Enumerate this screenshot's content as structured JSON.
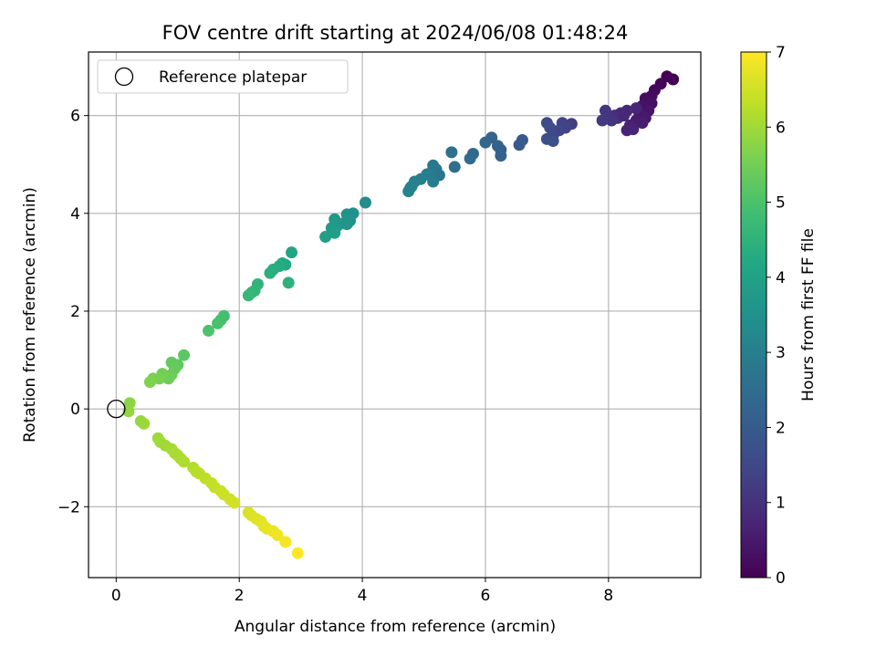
{
  "chart_data": {
    "type": "scatter",
    "title": "FOV centre drift starting at 2024/06/08 01:48:24",
    "xlabel": "Angular distance from reference (arcmin)",
    "ylabel": "Rotation from reference (arcmin)",
    "xlim": [
      -0.45,
      9.5
    ],
    "ylim": [
      -3.45,
      7.3
    ],
    "xticks": [
      0,
      2,
      4,
      6,
      8
    ],
    "yticks": [
      -2,
      0,
      2,
      4,
      6
    ],
    "ytick_labels": [
      "−2",
      "0",
      "2",
      "4",
      "6"
    ],
    "grid": true,
    "legend": {
      "placement": "top-left",
      "entries": [
        "Reference platepar"
      ]
    },
    "reference_point": {
      "x": 0,
      "y": 0,
      "label": "Reference platepar"
    },
    "colorbar": {
      "label": "Hours from first FF file",
      "colormap": "viridis",
      "range": [
        0,
        7
      ],
      "ticks": [
        0,
        1,
        2,
        3,
        4,
        5,
        6,
        7
      ]
    },
    "series": [
      {
        "points": [
          {
            "x": 8.95,
            "y": 6.8,
            "c": 0.02
          },
          {
            "x": 9.05,
            "y": 6.74,
            "c": 0.05
          },
          {
            "x": 8.85,
            "y": 6.65,
            "c": 0.1
          },
          {
            "x": 8.75,
            "y": 6.52,
            "c": 0.15
          },
          {
            "x": 8.7,
            "y": 6.4,
            "c": 0.2
          },
          {
            "x": 8.6,
            "y": 6.35,
            "c": 0.25
          },
          {
            "x": 8.7,
            "y": 6.25,
            "c": 0.3
          },
          {
            "x": 8.55,
            "y": 6.2,
            "c": 0.35
          },
          {
            "x": 8.65,
            "y": 6.1,
            "c": 0.4
          },
          {
            "x": 8.5,
            "y": 6.05,
            "c": 0.45
          },
          {
            "x": 8.6,
            "y": 5.95,
            "c": 0.5
          },
          {
            "x": 8.45,
            "y": 5.9,
            "c": 0.55
          },
          {
            "x": 8.55,
            "y": 5.85,
            "c": 0.6
          },
          {
            "x": 8.35,
            "y": 5.8,
            "c": 0.65
          },
          {
            "x": 8.4,
            "y": 5.72,
            "c": 0.7
          },
          {
            "x": 8.3,
            "y": 5.7,
            "c": 0.72
          },
          {
            "x": 8.45,
            "y": 6.15,
            "c": 0.75
          },
          {
            "x": 8.3,
            "y": 6.1,
            "c": 0.8
          },
          {
            "x": 8.2,
            "y": 6.05,
            "c": 0.85
          },
          {
            "x": 8.1,
            "y": 6.0,
            "c": 0.9
          },
          {
            "x": 8.15,
            "y": 5.95,
            "c": 0.95
          },
          {
            "x": 8.0,
            "y": 6.0,
            "c": 1.0
          },
          {
            "x": 8.05,
            "y": 5.9,
            "c": 1.05
          },
          {
            "x": 7.95,
            "y": 6.1,
            "c": 1.1
          },
          {
            "x": 7.9,
            "y": 5.9,
            "c": 1.15
          },
          {
            "x": 8.25,
            "y": 6.0,
            "c": 0.78
          },
          {
            "x": 7.4,
            "y": 5.83,
            "c": 1.3
          },
          {
            "x": 7.25,
            "y": 5.85,
            "c": 1.35
          },
          {
            "x": 7.3,
            "y": 5.75,
            "c": 1.4
          },
          {
            "x": 7.2,
            "y": 5.7,
            "c": 1.45
          },
          {
            "x": 7.1,
            "y": 5.6,
            "c": 1.5
          },
          {
            "x": 7.0,
            "y": 5.85,
            "c": 1.55
          },
          {
            "x": 7.05,
            "y": 5.75,
            "c": 1.6
          },
          {
            "x": 7.0,
            "y": 5.52,
            "c": 1.65
          },
          {
            "x": 7.1,
            "y": 5.48,
            "c": 1.7
          },
          {
            "x": 6.6,
            "y": 5.5,
            "c": 1.95
          },
          {
            "x": 6.55,
            "y": 5.4,
            "c": 2.0
          },
          {
            "x": 6.25,
            "y": 5.3,
            "c": 2.1
          },
          {
            "x": 6.25,
            "y": 5.18,
            "c": 2.15
          },
          {
            "x": 6.2,
            "y": 5.38,
            "c": 2.2
          },
          {
            "x": 6.1,
            "y": 5.55,
            "c": 2.25
          },
          {
            "x": 6.0,
            "y": 5.45,
            "c": 2.3
          },
          {
            "x": 5.8,
            "y": 5.22,
            "c": 2.4
          },
          {
            "x": 5.75,
            "y": 5.12,
            "c": 2.45
          },
          {
            "x": 5.5,
            "y": 4.95,
            "c": 2.55
          },
          {
            "x": 5.45,
            "y": 5.25,
            "c": 2.6
          },
          {
            "x": 5.25,
            "y": 4.78,
            "c": 2.7
          },
          {
            "x": 5.2,
            "y": 4.9,
            "c": 2.75
          },
          {
            "x": 5.15,
            "y": 4.98,
            "c": 2.8
          },
          {
            "x": 5.1,
            "y": 4.82,
            "c": 2.85
          },
          {
            "x": 5.15,
            "y": 4.65,
            "c": 2.9
          },
          {
            "x": 5.05,
            "y": 4.8,
            "c": 2.95
          },
          {
            "x": 4.95,
            "y": 4.7,
            "c": 3.0
          },
          {
            "x": 4.85,
            "y": 4.65,
            "c": 3.05
          },
          {
            "x": 4.8,
            "y": 4.55,
            "c": 3.1
          },
          {
            "x": 4.75,
            "y": 4.45,
            "c": 3.15
          },
          {
            "x": 4.78,
            "y": 4.52,
            "c": 3.12
          },
          {
            "x": 4.05,
            "y": 4.22,
            "c": 3.4
          },
          {
            "x": 3.85,
            "y": 4.0,
            "c": 3.5
          },
          {
            "x": 3.75,
            "y": 3.98,
            "c": 3.55
          },
          {
            "x": 3.8,
            "y": 3.85,
            "c": 3.6
          },
          {
            "x": 3.7,
            "y": 3.8,
            "c": 3.65
          },
          {
            "x": 3.6,
            "y": 3.75,
            "c": 3.7
          },
          {
            "x": 3.55,
            "y": 3.88,
            "c": 3.75
          },
          {
            "x": 3.5,
            "y": 3.7,
            "c": 3.8
          },
          {
            "x": 3.55,
            "y": 3.6,
            "c": 3.85
          },
          {
            "x": 3.4,
            "y": 3.52,
            "c": 3.9
          },
          {
            "x": 3.75,
            "y": 3.78,
            "c": 3.62
          },
          {
            "x": 2.85,
            "y": 3.2,
            "c": 4.1
          },
          {
            "x": 2.75,
            "y": 2.95,
            "c": 4.2
          },
          {
            "x": 2.7,
            "y": 2.98,
            "c": 4.25
          },
          {
            "x": 2.65,
            "y": 2.92,
            "c": 4.3
          },
          {
            "x": 2.55,
            "y": 2.85,
            "c": 4.35
          },
          {
            "x": 2.5,
            "y": 2.78,
            "c": 4.4
          },
          {
            "x": 2.8,
            "y": 2.58,
            "c": 4.45
          },
          {
            "x": 2.3,
            "y": 2.55,
            "c": 4.5
          },
          {
            "x": 2.25,
            "y": 2.42,
            "c": 4.55
          },
          {
            "x": 2.2,
            "y": 2.38,
            "c": 4.6
          },
          {
            "x": 2.15,
            "y": 2.32,
            "c": 4.65
          },
          {
            "x": 1.75,
            "y": 1.9,
            "c": 4.85
          },
          {
            "x": 1.7,
            "y": 1.82,
            "c": 4.9
          },
          {
            "x": 1.65,
            "y": 1.75,
            "c": 4.95
          },
          {
            "x": 1.5,
            "y": 1.6,
            "c": 5.0
          },
          {
            "x": 1.1,
            "y": 1.1,
            "c": 5.2
          },
          {
            "x": 1.0,
            "y": 0.9,
            "c": 5.25
          },
          {
            "x": 0.9,
            "y": 0.95,
            "c": 5.3
          },
          {
            "x": 0.95,
            "y": 0.82,
            "c": 5.35
          },
          {
            "x": 0.9,
            "y": 0.7,
            "c": 5.4
          },
          {
            "x": 0.85,
            "y": 0.62,
            "c": 5.45
          },
          {
            "x": 0.75,
            "y": 0.72,
            "c": 5.5
          },
          {
            "x": 0.7,
            "y": 0.62,
            "c": 5.55
          },
          {
            "x": 0.6,
            "y": 0.62,
            "c": 5.6
          },
          {
            "x": 0.55,
            "y": 0.55,
            "c": 5.65
          },
          {
            "x": 0.22,
            "y": 0.12,
            "c": 5.8
          },
          {
            "x": 0.2,
            "y": -0.05,
            "c": 5.85
          },
          {
            "x": 0.4,
            "y": -0.25,
            "c": 5.9
          },
          {
            "x": 0.45,
            "y": -0.3,
            "c": 5.92
          },
          {
            "x": 0.68,
            "y": -0.6,
            "c": 5.98
          },
          {
            "x": 0.72,
            "y": -0.68,
            "c": 6.0
          },
          {
            "x": 0.8,
            "y": -0.75,
            "c": 6.02
          },
          {
            "x": 0.9,
            "y": -0.82,
            "c": 6.05
          },
          {
            "x": 0.95,
            "y": -0.9,
            "c": 6.08
          },
          {
            "x": 1.0,
            "y": -0.95,
            "c": 6.1
          },
          {
            "x": 1.05,
            "y": -1.02,
            "c": 6.12
          },
          {
            "x": 1.1,
            "y": -1.08,
            "c": 6.15
          },
          {
            "x": 1.25,
            "y": -1.2,
            "c": 6.2
          },
          {
            "x": 1.3,
            "y": -1.28,
            "c": 6.22
          },
          {
            "x": 1.35,
            "y": -1.32,
            "c": 6.25
          },
          {
            "x": 1.45,
            "y": -1.42,
            "c": 6.3
          },
          {
            "x": 1.55,
            "y": -1.52,
            "c": 6.35
          },
          {
            "x": 1.6,
            "y": -1.6,
            "c": 6.38
          },
          {
            "x": 1.7,
            "y": -1.68,
            "c": 6.42
          },
          {
            "x": 1.75,
            "y": -1.75,
            "c": 6.45
          },
          {
            "x": 1.85,
            "y": -1.85,
            "c": 6.5
          },
          {
            "x": 1.92,
            "y": -1.92,
            "c": 6.52
          },
          {
            "x": 2.15,
            "y": -2.12,
            "c": 6.6
          },
          {
            "x": 2.2,
            "y": -2.18,
            "c": 6.62
          },
          {
            "x": 2.28,
            "y": -2.25,
            "c": 6.65
          },
          {
            "x": 2.35,
            "y": -2.3,
            "c": 6.7
          },
          {
            "x": 2.4,
            "y": -2.4,
            "c": 6.72
          },
          {
            "x": 2.45,
            "y": -2.45,
            "c": 6.75
          },
          {
            "x": 2.55,
            "y": -2.5,
            "c": 6.8
          },
          {
            "x": 2.62,
            "y": -2.58,
            "c": 6.85
          },
          {
            "x": 2.75,
            "y": -2.72,
            "c": 6.9
          },
          {
            "x": 2.95,
            "y": -2.95,
            "c": 7.0
          }
        ]
      }
    ]
  }
}
